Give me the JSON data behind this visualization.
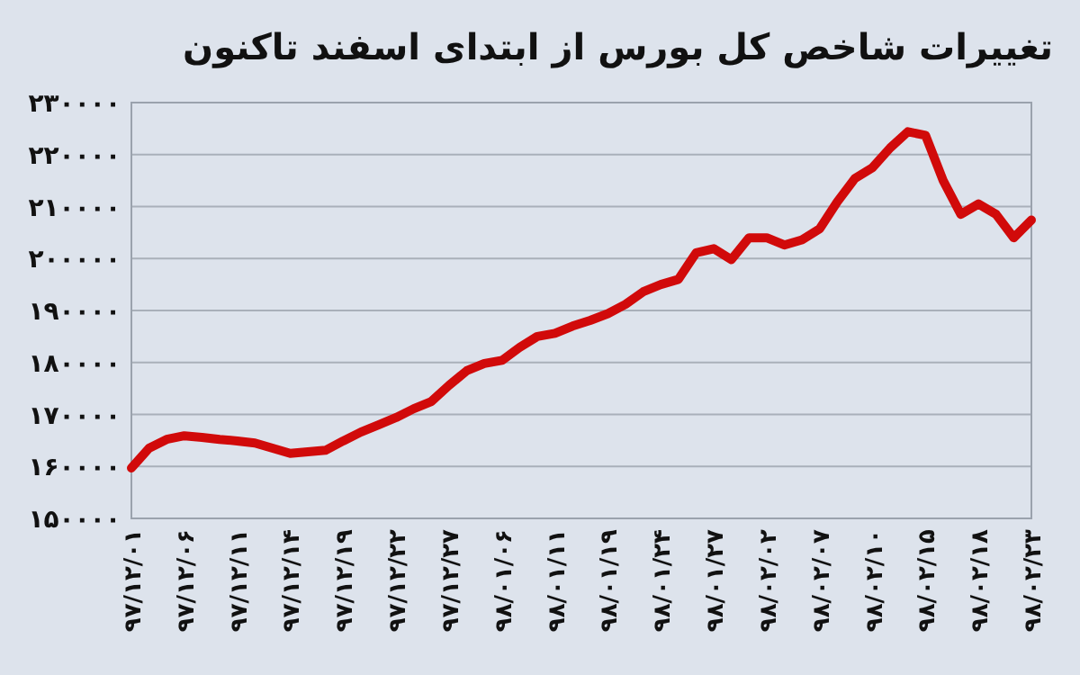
{
  "chart_data": {
    "type": "line",
    "title": "تغییرات شاخص کل بورس از ابتدای اسفند تاکنون",
    "categories": [
      "۹۷/۱۲/۰۱",
      null,
      null,
      "۹۷/۱۲/۰۶",
      null,
      null,
      "۹۷/۱۲/۱۱",
      null,
      null,
      "۹۷/۱۲/۱۴",
      null,
      null,
      "۹۷/۱۲/۱۹",
      null,
      null,
      "۹۷/۱۲/۲۲",
      null,
      null,
      "۹۷/۱۲/۲۷",
      null,
      null,
      "۹۸/۰۱/۰۶",
      null,
      null,
      "۹۸/۰۱/۱۱",
      null,
      null,
      "۹۸/۰۱/۱۹",
      null,
      null,
      "۹۸/۰۱/۲۴",
      null,
      null,
      "۹۸/۰۱/۲۷",
      null,
      null,
      "۹۸/۰۲/۰۲",
      null,
      null,
      "۹۸/۰۲/۰۷",
      null,
      null,
      "۹۸/۰۲/۱۰",
      null,
      null,
      "۹۸/۰۲/۱۵",
      null,
      null,
      "۹۸/۰۲/۱۸",
      null,
      null,
      "۹۸/۰۲/۲۳"
    ],
    "series": [
      {
        "color": "#d10a0a",
        "values": [
          159700,
          163500,
          165200,
          165900,
          165600,
          165200,
          164900,
          164500,
          163500,
          162500,
          162800,
          163100,
          164900,
          166600,
          168000,
          169400,
          171100,
          172500,
          175600,
          178400,
          179800,
          180400,
          182900,
          185000,
          185600,
          187000,
          188100,
          189400,
          191200,
          193600,
          195000,
          196000,
          201100,
          201900,
          199800,
          204000,
          204000,
          202600,
          203600,
          205700,
          210900,
          215400,
          217500,
          221300,
          224400,
          223700,
          215000,
          208500,
          210500,
          208500,
          204000,
          207400
        ]
      }
    ],
    "ylim": [
      150000,
      230000
    ],
    "yticks": [
      {
        "value": 150000,
        "label": "۱۵۰۰۰۰"
      },
      {
        "value": 160000,
        "label": "۱۶۰۰۰۰"
      },
      {
        "value": 170000,
        "label": "۱۷۰۰۰۰"
      },
      {
        "value": 180000,
        "label": "۱۸۰۰۰۰"
      },
      {
        "value": 190000,
        "label": "۱۹۰۰۰۰"
      },
      {
        "value": 200000,
        "label": "۲۰۰۰۰۰"
      },
      {
        "value": 210000,
        "label": "۲۱۰۰۰۰"
      },
      {
        "value": 220000,
        "label": "۲۲۰۰۰۰"
      },
      {
        "value": 230000,
        "label": "۲۳۰۰۰۰"
      }
    ],
    "grid": "y",
    "marker": "none",
    "line_style": "solid"
  }
}
